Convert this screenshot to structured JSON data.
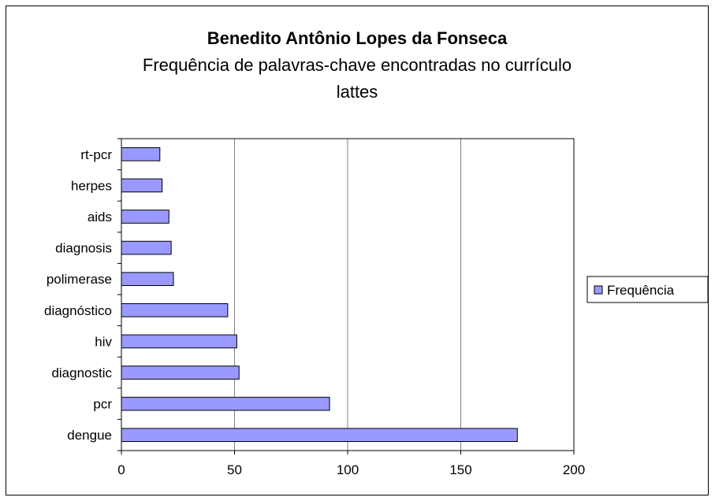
{
  "chart_data": {
    "type": "bar",
    "orientation": "horizontal",
    "title": "Benedito Antônio Lopes da Fonseca",
    "subtitle_lines": [
      "Frequência de palavras-chave encontradas no currículo",
      "lattes"
    ],
    "categories": [
      "rt-pcr",
      "herpes",
      "aids",
      "diagnosis",
      "polimerase",
      "diagnóstico",
      "hiv",
      "diagnostic",
      "pcr",
      "dengue"
    ],
    "series": [
      {
        "name": "Frequência",
        "values": [
          17,
          18,
          21,
          22,
          23,
          47,
          51,
          52,
          92,
          175
        ]
      }
    ],
    "xlim": [
      0,
      200
    ],
    "xticks": [
      0,
      50,
      100,
      150,
      200
    ],
    "xtick_labels": [
      "0",
      "50",
      "100",
      "150",
      "200"
    ],
    "grid": "vertical",
    "legend_position": "right",
    "bar_color": "#9999ff",
    "bar_edge_color": "#000000"
  }
}
